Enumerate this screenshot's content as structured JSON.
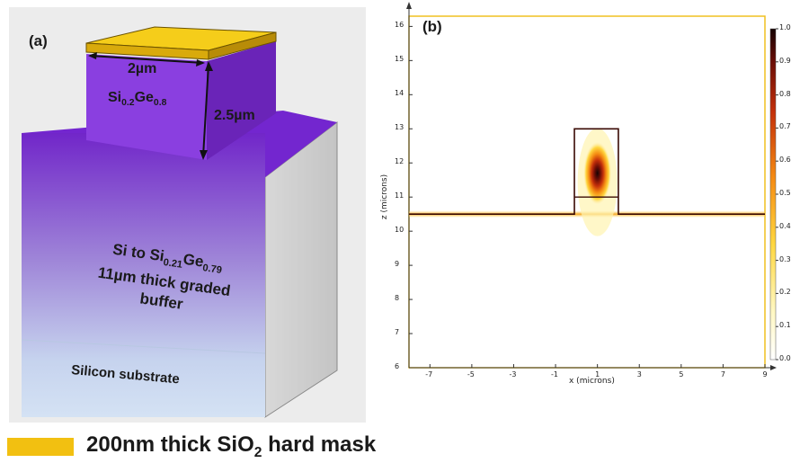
{
  "panel_a": {
    "label": "(a)",
    "width_label": "2µm",
    "ridge_material": {
      "base": "Si",
      "sub1": "0.2",
      "mid": "Ge",
      "sub2": "0.8"
    },
    "height_label": "2.5µm",
    "buffer": {
      "line1_pre": "Si to Si",
      "line1_sub1": "0.21",
      "line1_mid": "Ge",
      "line1_sub2": "0.79",
      "line2": "11µm thick graded",
      "line3": "buffer"
    },
    "substrate_label": "Silicon substrate",
    "colors": {
      "mask": "#f2c011",
      "ridge": "#7a2fcf",
      "block_side": "#d2d2d2"
    }
  },
  "panel_b": {
    "label": "(b)",
    "x_axis_label": "x (microns)",
    "y_axis_label": "z (microns)",
    "x_ticks": [
      "-7",
      "-5",
      "-3",
      "-1",
      "1",
      "3",
      "5",
      "7",
      "9"
    ],
    "y_ticks": [
      "6",
      "7",
      "8",
      "9",
      "10",
      "11",
      "12",
      "13",
      "14",
      "15",
      "16"
    ],
    "colorbar_ticks": [
      "0.0",
      "0.1",
      "0.2",
      "0.3",
      "0.4",
      "0.5",
      "0.6",
      "0.7",
      "0.8",
      "0.9",
      "1.0"
    ]
  },
  "chart_data": {
    "type": "heatmap",
    "xlabel": "x (microns)",
    "ylabel": "z (microns)",
    "xlim": [
      -8,
      9
    ],
    "ylim": [
      6,
      16.3
    ],
    "colorbar_range": [
      0,
      1
    ],
    "substrate_top_z": 10.5,
    "ridge": {
      "x_min": -0.1,
      "x_max": 2.0,
      "z_min": 10.5,
      "z_max": 13.0,
      "interface_z": 11.0
    },
    "mode_peak": {
      "x": 1.0,
      "z": 11.7,
      "value": 1.0
    }
  },
  "legend": {
    "text_pre": "200nm thick SiO",
    "text_sub": "2",
    "text_post": " hard mask",
    "color": "#f2c011"
  }
}
